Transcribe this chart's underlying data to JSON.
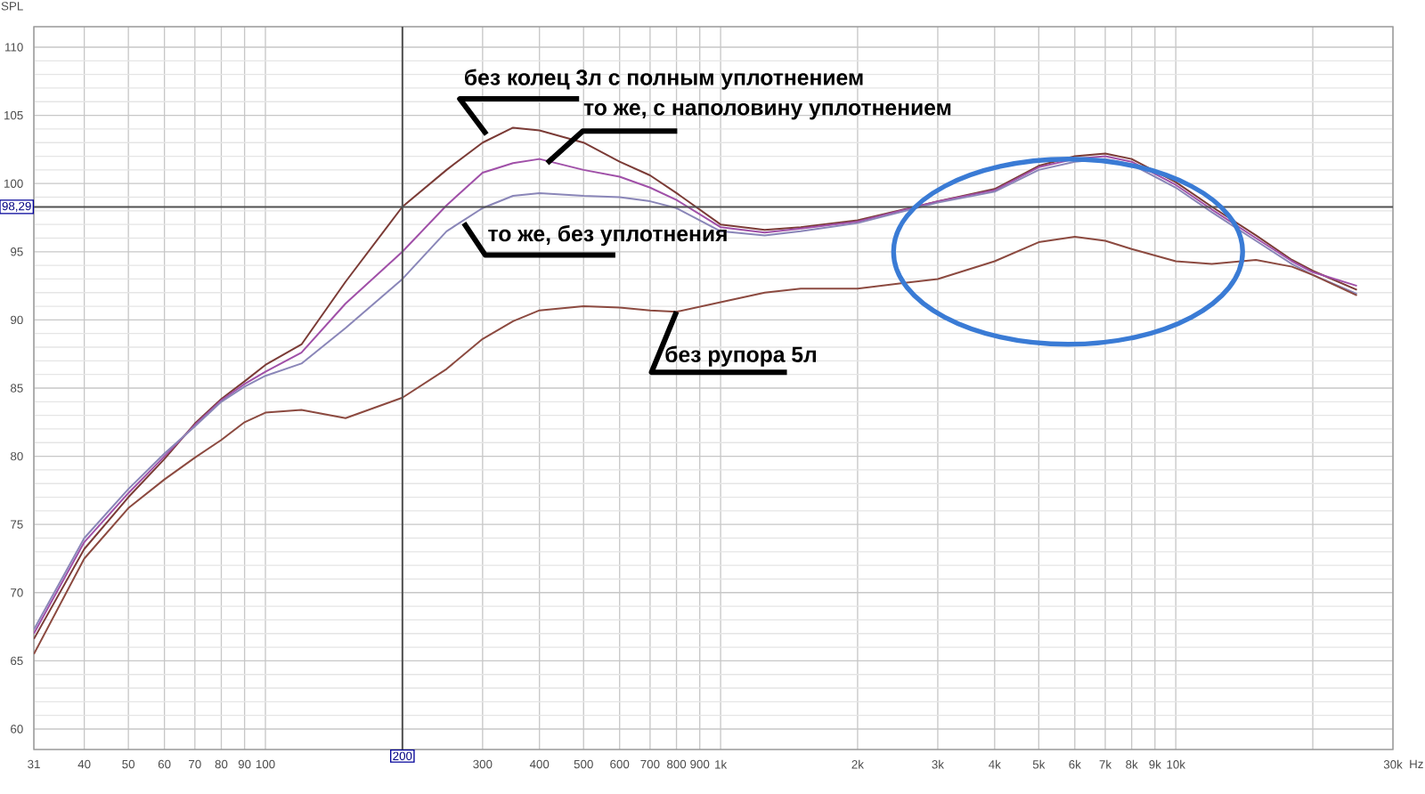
{
  "chart_data": {
    "type": "line",
    "ylabel": "SPL",
    "x": [
      31,
      40,
      50,
      60,
      70,
      80,
      90,
      100,
      120,
      150,
      200,
      250,
      300,
      350,
      400,
      500,
      600,
      700,
      800,
      1000,
      1250,
      1500,
      2000,
      3000,
      4000,
      5000,
      6000,
      7000,
      8000,
      10000,
      12000,
      15000,
      18000,
      20000,
      25000
    ],
    "series": [
      {
        "color": "#7b3b36",
        "values": [
          66.6,
          73.2,
          77.0,
          79.8,
          82.4,
          84.2,
          85.5,
          86.7,
          88.2,
          92.8,
          98.3,
          101.0,
          103.0,
          104.1,
          103.9,
          103.0,
          101.6,
          100.6,
          99.3,
          97.0,
          96.6,
          96.8,
          97.3,
          98.7,
          99.6,
          101.3,
          102.0,
          102.2,
          101.8,
          100.1,
          98.3,
          96.2,
          94.4,
          93.6,
          92.2
        ]
      },
      {
        "color": "#a050a8",
        "values": [
          67.0,
          73.7,
          77.3,
          80.0,
          82.3,
          84.1,
          85.3,
          86.2,
          87.6,
          91.2,
          95.0,
          98.4,
          100.8,
          101.5,
          101.8,
          101.0,
          100.5,
          99.7,
          98.8,
          96.8,
          96.4,
          96.7,
          97.2,
          98.7,
          99.5,
          101.2,
          101.8,
          102.0,
          101.6,
          99.9,
          98.1,
          96.0,
          94.3,
          93.5,
          92.5
        ]
      },
      {
        "color": "#8a86b8",
        "values": [
          67.3,
          74.0,
          77.6,
          80.2,
          82.2,
          84.0,
          85.1,
          85.9,
          86.8,
          89.4,
          93.0,
          96.5,
          98.2,
          99.1,
          99.3,
          99.1,
          99.0,
          98.7,
          98.2,
          96.5,
          96.2,
          96.5,
          97.1,
          98.6,
          99.4,
          101.0,
          101.6,
          101.8,
          101.4,
          99.7,
          97.9,
          95.8,
          94.1,
          93.3,
          91.9
        ]
      },
      {
        "color": "#8c4a40",
        "values": [
          65.5,
          72.5,
          76.2,
          78.3,
          79.9,
          81.2,
          82.5,
          83.2,
          83.4,
          82.8,
          84.3,
          86.4,
          88.6,
          89.9,
          90.7,
          91.0,
          90.9,
          90.7,
          90.6,
          91.3,
          92.0,
          92.3,
          92.3,
          93.0,
          94.3,
          95.7,
          96.1,
          95.8,
          95.2,
          94.3,
          94.1,
          94.4,
          93.9,
          93.3,
          91.8
        ]
      }
    ],
    "xlim": [
      31,
      30000
    ],
    "ylim": [
      58.5,
      111.5
    ],
    "log": "x",
    "grid": true,
    "xticks": [
      31,
      40,
      50,
      60,
      70,
      80,
      90,
      100,
      {
        "value": 200,
        "label": null
      },
      300,
      400,
      500,
      600,
      700,
      800,
      900,
      {
        "value": 1000,
        "label": "1k"
      },
      {
        "value": 2000,
        "label": "2k"
      },
      {
        "value": 3000,
        "label": "3k"
      },
      {
        "value": 4000,
        "label": "4k"
      },
      {
        "value": 5000,
        "label": "5k"
      },
      {
        "value": 6000,
        "label": "6k"
      },
      {
        "value": 7000,
        "label": "7k"
      },
      {
        "value": 8000,
        "label": "8k"
      },
      {
        "value": 9000,
        "label": "9k"
      },
      {
        "value": 10000,
        "label": "10k"
      },
      {
        "value": 20000,
        "label": null
      },
      {
        "value": 30000,
        "label": "30k"
      }
    ],
    "xlabel": "Hz",
    "yticks": [
      60,
      65,
      70,
      75,
      80,
      85,
      90,
      95,
      100,
      105,
      110
    ],
    "ref_lines": [
      {
        "axis": "x",
        "value": 200,
        "label": "200",
        "color": "#505050"
      },
      {
        "axis": "y",
        "value": 98.29,
        "label": "98,29",
        "color": "#505050"
      }
    ],
    "annotations": [
      {
        "text": "без колец 3л с полным уплотнением",
        "x": 306,
        "y": 103.6
      },
      {
        "text": "то же, с наполовину уплотнением",
        "x": 416,
        "y": 101.5
      },
      {
        "text": "то же, без уплотнения",
        "x": 273,
        "y": 97.1
      },
      {
        "text": "без рупора 5л",
        "x": 800,
        "y": 90.6
      }
    ]
  }
}
